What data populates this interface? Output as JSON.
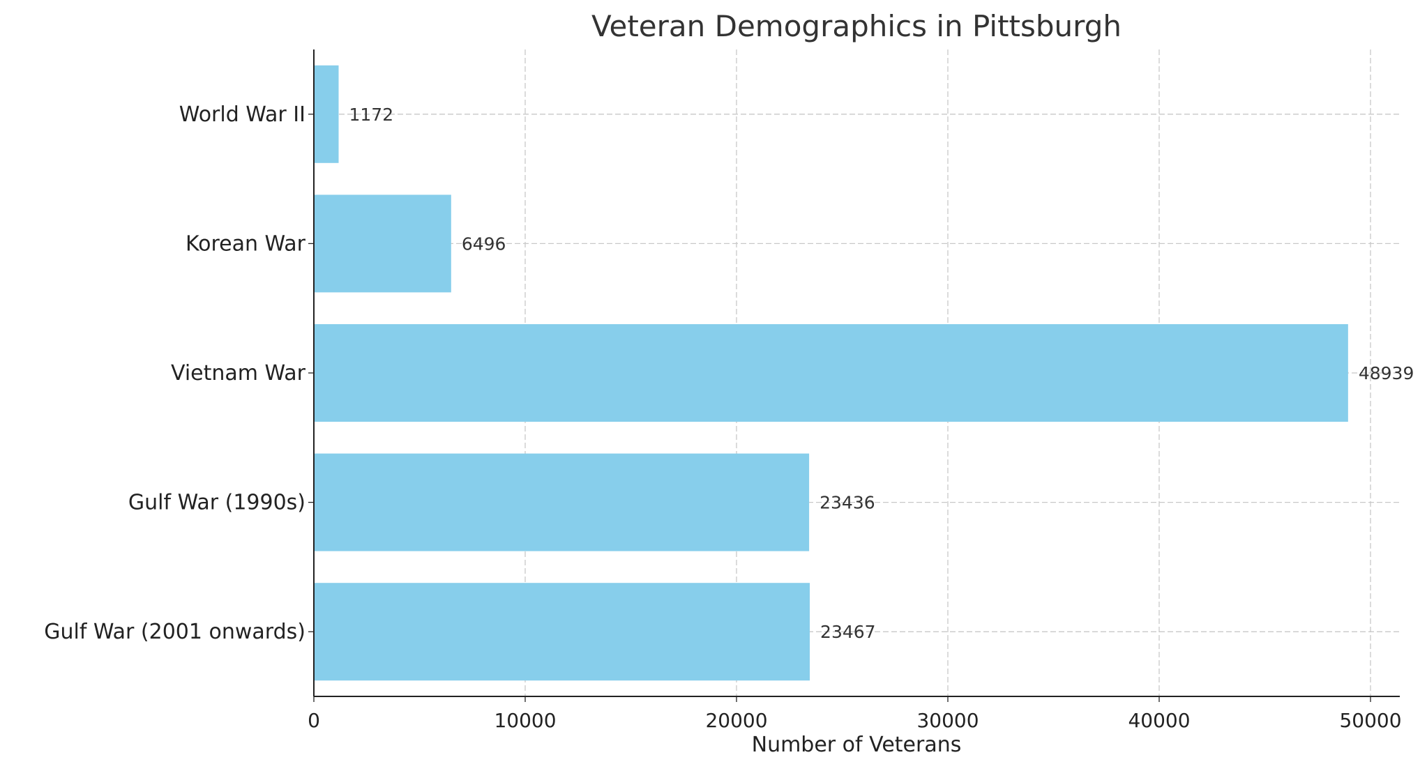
{
  "chart_data": {
    "type": "bar",
    "orientation": "horizontal",
    "title": "Veteran Demographics in Pittsburgh",
    "xlabel": "Number of Veterans",
    "ylabel": "",
    "categories": [
      "World War II",
      "Korean War",
      "Vietnam War",
      "Gulf War (1990s)",
      "Gulf War (2001 onwards)"
    ],
    "values": [
      1172,
      6496,
      48939,
      23436,
      23467
    ],
    "xlim": [
      0,
      51500
    ],
    "xticks": [
      0,
      10000,
      20000,
      30000,
      40000,
      50000
    ],
    "grid": true,
    "data_labels": true,
    "bar_color": "#87CEEB"
  }
}
